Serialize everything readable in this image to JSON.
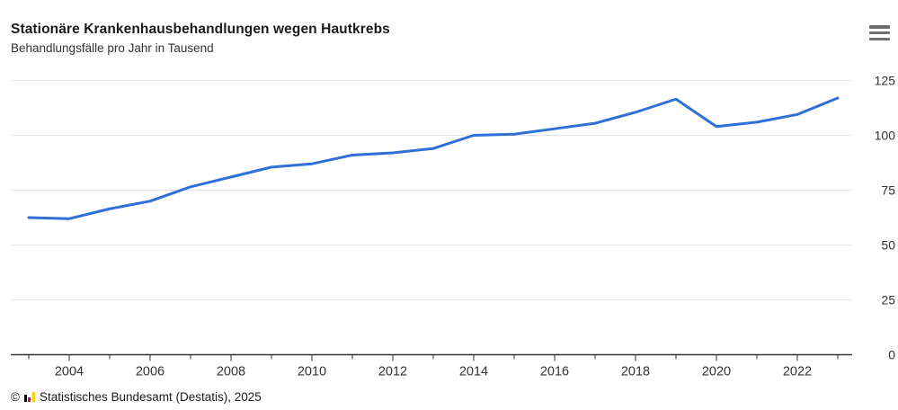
{
  "header": {
    "title": "Stationäre Krankenhausbehandlungen wegen Hautkrebs",
    "subtitle": "Behandlungsfälle pro Jahr in Tausend",
    "menu_icon": "hamburger-menu-icon"
  },
  "chart_data": {
    "type": "line",
    "title": "Stationäre Krankenhausbehandlungen wegen Hautkrebs",
    "subtitle": "Behandlungsfälle pro Jahr in Tausend",
    "x": [
      2003,
      2004,
      2005,
      2006,
      2007,
      2008,
      2009,
      2010,
      2011,
      2012,
      2013,
      2014,
      2015,
      2016,
      2017,
      2018,
      2019,
      2020,
      2021,
      2022,
      2023
    ],
    "values": [
      62.5,
      62,
      66.5,
      70,
      76.5,
      81,
      85.5,
      87,
      91,
      92,
      94,
      100,
      100.5,
      103,
      105.5,
      110.5,
      116.5,
      104,
      106,
      109.5,
      117
    ],
    "ylim": [
      0,
      125
    ],
    "yticks": [
      0,
      25,
      50,
      75,
      100,
      125
    ],
    "xtick_major": [
      2004,
      2006,
      2008,
      2010,
      2012,
      2014,
      2016,
      2018,
      2020,
      2022
    ],
    "xtick_minor": [
      2003,
      2005,
      2007,
      2009,
      2011,
      2013,
      2015,
      2017,
      2019,
      2021,
      2023
    ],
    "grid": true,
    "legend": false,
    "line_color": "#2e6fd8"
  },
  "footer": {
    "copyright_symbol": "©",
    "source": "Statistisches Bundesamt (Destatis), 2025",
    "logo_icon": "destatis-bars-icon"
  },
  "colors": {
    "line": "#2e6fd8",
    "grid": "#e6e6e6",
    "axis": "#333333",
    "text": "#333333",
    "title": "#1a1a1a",
    "menu": "#6e6e6e",
    "logo_black": "#000000",
    "logo_red": "#dd0031",
    "logo_gold": "#ffcc00"
  }
}
